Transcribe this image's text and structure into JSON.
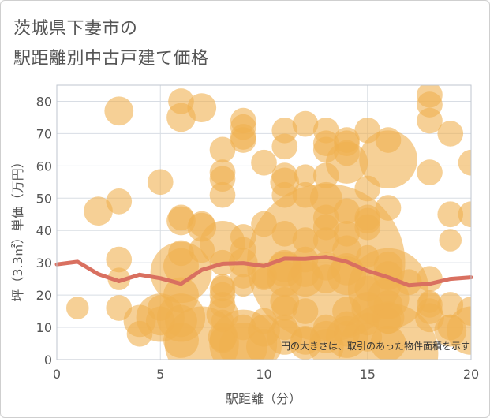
{
  "title_line1": "茨城県下妻市の",
  "title_line2": "駅距離別中古戸建て価格",
  "chart_data": {
    "type": "scatter",
    "title": "茨城県下妻市の駅距離別中古戸建て価格",
    "xlabel": "駅距離（分）",
    "ylabel": "坪（3.3㎡）単価（万円）",
    "xlim": [
      0,
      20
    ],
    "ylim": [
      0,
      85
    ],
    "xticks": [
      0,
      5,
      10,
      15,
      20
    ],
    "yticks": [
      0,
      10,
      20,
      30,
      40,
      50,
      60,
      70,
      80
    ],
    "grid": true,
    "annotation": "円の大きさは、取引のあった物件面積を示す",
    "colors": {
      "bubble": "#f0b050",
      "trend": "#d97060",
      "grid": "#d8dde4"
    },
    "trend_line": [
      {
        "x": 0,
        "y": 29.5
      },
      {
        "x": 1,
        "y": 30.3
      },
      {
        "x": 2,
        "y": 26.5
      },
      {
        "x": 3,
        "y": 24.3
      },
      {
        "x": 4,
        "y": 26.3
      },
      {
        "x": 5,
        "y": 25.2
      },
      {
        "x": 6,
        "y": 23.5
      },
      {
        "x": 7,
        "y": 27.8
      },
      {
        "x": 8,
        "y": 29.7
      },
      {
        "x": 9,
        "y": 29.9
      },
      {
        "x": 10,
        "y": 29.0
      },
      {
        "x": 11,
        "y": 31.3
      },
      {
        "x": 12,
        "y": 31.2
      },
      {
        "x": 13,
        "y": 31.8
      },
      {
        "x": 14,
        "y": 30.3
      },
      {
        "x": 15,
        "y": 27.5
      },
      {
        "x": 16,
        "y": 25.5
      },
      {
        "x": 17,
        "y": 23.0
      },
      {
        "x": 18,
        "y": 23.5
      },
      {
        "x": 19,
        "y": 25.0
      },
      {
        "x": 20,
        "y": 25.5
      }
    ],
    "bubbles": [
      {
        "x": 1,
        "y": 16,
        "s": 6
      },
      {
        "x": 2,
        "y": 46,
        "s": 8
      },
      {
        "x": 3,
        "y": 77,
        "s": 8
      },
      {
        "x": 3,
        "y": 49,
        "s": 7
      },
      {
        "x": 3,
        "y": 31,
        "s": 7
      },
      {
        "x": 3,
        "y": 25,
        "s": 6
      },
      {
        "x": 3,
        "y": 16,
        "s": 7
      },
      {
        "x": 4,
        "y": 12,
        "s": 9
      },
      {
        "x": 4,
        "y": 8,
        "s": 7
      },
      {
        "x": 5,
        "y": 55,
        "s": 7
      },
      {
        "x": 5,
        "y": 16,
        "s": 7
      },
      {
        "x": 5,
        "y": 13,
        "s": 14
      },
      {
        "x": 5,
        "y": 12,
        "s": 8
      },
      {
        "x": 6,
        "y": 80,
        "s": 7
      },
      {
        "x": 6,
        "y": 75,
        "s": 8
      },
      {
        "x": 6,
        "y": 44,
        "s": 7
      },
      {
        "x": 6,
        "y": 43,
        "s": 8
      },
      {
        "x": 6,
        "y": 33,
        "s": 7
      },
      {
        "x": 6,
        "y": 29,
        "s": 10
      },
      {
        "x": 6,
        "y": 27,
        "s": 18
      },
      {
        "x": 6,
        "y": 20,
        "s": 10
      },
      {
        "x": 6,
        "y": 13,
        "s": 14
      },
      {
        "x": 6,
        "y": 12,
        "s": 9
      },
      {
        "x": 6,
        "y": 6,
        "s": 10
      },
      {
        "x": 7,
        "y": 78,
        "s": 8
      },
      {
        "x": 7,
        "y": 42,
        "s": 7
      },
      {
        "x": 7,
        "y": 41,
        "s": 8
      },
      {
        "x": 7,
        "y": 34,
        "s": 7
      },
      {
        "x": 7,
        "y": 5,
        "s": 22
      },
      {
        "x": 8,
        "y": 65,
        "s": 7
      },
      {
        "x": 8,
        "y": 58,
        "s": 7
      },
      {
        "x": 8,
        "y": 56,
        "s": 7
      },
      {
        "x": 8,
        "y": 51,
        "s": 7
      },
      {
        "x": 8,
        "y": 36,
        "s": 13
      },
      {
        "x": 8,
        "y": 30,
        "s": 7
      },
      {
        "x": 8,
        "y": 23,
        "s": 6
      },
      {
        "x": 8,
        "y": 22,
        "s": 7
      },
      {
        "x": 8,
        "y": 20,
        "s": 7
      },
      {
        "x": 8,
        "y": 17,
        "s": 7
      },
      {
        "x": 8,
        "y": 14,
        "s": 9
      },
      {
        "x": 8,
        "y": 12,
        "s": 6
      },
      {
        "x": 8,
        "y": 7,
        "s": 8
      },
      {
        "x": 8,
        "y": 6,
        "s": 7
      },
      {
        "x": 9,
        "y": 74,
        "s": 7
      },
      {
        "x": 9,
        "y": 72,
        "s": 7
      },
      {
        "x": 9,
        "y": 69,
        "s": 7
      },
      {
        "x": 9,
        "y": 68,
        "s": 7
      },
      {
        "x": 9,
        "y": 38,
        "s": 7
      },
      {
        "x": 9,
        "y": 34,
        "s": 7
      },
      {
        "x": 9,
        "y": 30,
        "s": 8
      },
      {
        "x": 9,
        "y": 26,
        "s": 7
      },
      {
        "x": 9,
        "y": 23,
        "s": 6
      },
      {
        "x": 9,
        "y": 10,
        "s": 7
      },
      {
        "x": 9,
        "y": 5,
        "s": 20
      },
      {
        "x": 9,
        "y": 4,
        "s": 14
      },
      {
        "x": 10,
        "y": 61,
        "s": 7
      },
      {
        "x": 10,
        "y": 42,
        "s": 7
      },
      {
        "x": 10,
        "y": 26,
        "s": 7
      },
      {
        "x": 10,
        "y": 25,
        "s": 6
      },
      {
        "x": 10,
        "y": 12,
        "s": 7
      },
      {
        "x": 10,
        "y": 9,
        "s": 9
      },
      {
        "x": 10,
        "y": 4,
        "s": 10
      },
      {
        "x": 11,
        "y": 71,
        "s": 7
      },
      {
        "x": 11,
        "y": 66,
        "s": 7
      },
      {
        "x": 11,
        "y": 57,
        "s": 7
      },
      {
        "x": 11,
        "y": 55,
        "s": 8
      },
      {
        "x": 11,
        "y": 51,
        "s": 7
      },
      {
        "x": 11,
        "y": 39,
        "s": 7
      },
      {
        "x": 11,
        "y": 29,
        "s": 9
      },
      {
        "x": 11,
        "y": 28,
        "s": 10
      },
      {
        "x": 11,
        "y": 25,
        "s": 10
      },
      {
        "x": 11,
        "y": 18,
        "s": 8
      },
      {
        "x": 11,
        "y": 16,
        "s": 7
      },
      {
        "x": 11,
        "y": 10,
        "s": 7
      },
      {
        "x": 11,
        "y": 7,
        "s": 10
      },
      {
        "x": 12,
        "y": 73,
        "s": 7
      },
      {
        "x": 12,
        "y": 57,
        "s": 6
      },
      {
        "x": 12,
        "y": 51,
        "s": 7
      },
      {
        "x": 12,
        "y": 37,
        "s": 7
      },
      {
        "x": 12,
        "y": 31,
        "s": 7
      },
      {
        "x": 12,
        "y": 27,
        "s": 8
      },
      {
        "x": 12,
        "y": 25,
        "s": 10
      },
      {
        "x": 12,
        "y": 15,
        "s": 7
      },
      {
        "x": 12,
        "y": 6,
        "s": 8
      },
      {
        "x": 12,
        "y": 5,
        "s": 9
      },
      {
        "x": 13,
        "y": 71,
        "s": 7
      },
      {
        "x": 13,
        "y": 67,
        "s": 7
      },
      {
        "x": 13,
        "y": 65,
        "s": 7
      },
      {
        "x": 13,
        "y": 57,
        "s": 7
      },
      {
        "x": 13,
        "y": 50,
        "s": 9
      },
      {
        "x": 13,
        "y": 44,
        "s": 7
      },
      {
        "x": 13,
        "y": 41,
        "s": 7
      },
      {
        "x": 13,
        "y": 37,
        "s": 7
      },
      {
        "x": 13,
        "y": 30,
        "s": 48
      },
      {
        "x": 13,
        "y": 29,
        "s": 8
      },
      {
        "x": 13,
        "y": 25,
        "s": 8
      },
      {
        "x": 13,
        "y": 10,
        "s": 7
      },
      {
        "x": 13,
        "y": 7,
        "s": 9
      },
      {
        "x": 13,
        "y": 4,
        "s": 10
      },
      {
        "x": 14,
        "y": 68,
        "s": 7
      },
      {
        "x": 14,
        "y": 67,
        "s": 7
      },
      {
        "x": 14,
        "y": 64,
        "s": 7
      },
      {
        "x": 14,
        "y": 61,
        "s": 12
      },
      {
        "x": 14,
        "y": 46,
        "s": 7
      },
      {
        "x": 14,
        "y": 39,
        "s": 7
      },
      {
        "x": 14,
        "y": 34,
        "s": 8
      },
      {
        "x": 14,
        "y": 28,
        "s": 9
      },
      {
        "x": 14,
        "y": 26,
        "s": 11
      },
      {
        "x": 14,
        "y": 15,
        "s": 8
      },
      {
        "x": 14,
        "y": 11,
        "s": 7
      },
      {
        "x": 14,
        "y": 8,
        "s": 7
      },
      {
        "x": 14,
        "y": 7,
        "s": 12
      },
      {
        "x": 15,
        "y": 71,
        "s": 7
      },
      {
        "x": 15,
        "y": 53,
        "s": 7
      },
      {
        "x": 15,
        "y": 44,
        "s": 7
      },
      {
        "x": 15,
        "y": 43,
        "s": 7
      },
      {
        "x": 15,
        "y": 41,
        "s": 7
      },
      {
        "x": 15,
        "y": 32,
        "s": 6
      },
      {
        "x": 15,
        "y": 22,
        "s": 7
      },
      {
        "x": 15,
        "y": 16,
        "s": 9
      },
      {
        "x": 15,
        "y": 11,
        "s": 6
      },
      {
        "x": 15,
        "y": 7,
        "s": 8
      },
      {
        "x": 16,
        "y": 68,
        "s": 7
      },
      {
        "x": 16,
        "y": 62,
        "s": 17
      },
      {
        "x": 16,
        "y": 47,
        "s": 7
      },
      {
        "x": 16,
        "y": 29,
        "s": 8
      },
      {
        "x": 16,
        "y": 26,
        "s": 8
      },
      {
        "x": 16,
        "y": 22,
        "s": 24
      },
      {
        "x": 16,
        "y": 19,
        "s": 12
      },
      {
        "x": 16,
        "y": 17,
        "s": 8
      },
      {
        "x": 16,
        "y": 13,
        "s": 9
      },
      {
        "x": 16,
        "y": 12,
        "s": 7
      },
      {
        "x": 16,
        "y": 5,
        "s": 10
      },
      {
        "x": 16,
        "y": 2,
        "s": 30
      },
      {
        "x": 17,
        "y": 24,
        "s": 7
      },
      {
        "x": 18,
        "y": 82,
        "s": 7
      },
      {
        "x": 18,
        "y": 79,
        "s": 7
      },
      {
        "x": 18,
        "y": 74,
        "s": 7
      },
      {
        "x": 18,
        "y": 58,
        "s": 7
      },
      {
        "x": 18,
        "y": 25,
        "s": 7
      },
      {
        "x": 18,
        "y": 18,
        "s": 6
      },
      {
        "x": 18,
        "y": 17,
        "s": 7
      },
      {
        "x": 18,
        "y": 15,
        "s": 7
      },
      {
        "x": 18,
        "y": 13,
        "s": 8
      },
      {
        "x": 19,
        "y": 70,
        "s": 7
      },
      {
        "x": 19,
        "y": 45,
        "s": 7
      },
      {
        "x": 19,
        "y": 37,
        "s": 6
      },
      {
        "x": 19,
        "y": 17,
        "s": 7
      },
      {
        "x": 19,
        "y": 10,
        "s": 7
      },
      {
        "x": 19,
        "y": 9,
        "s": 9
      },
      {
        "x": 20,
        "y": 61,
        "s": 7
      },
      {
        "x": 20,
        "y": 45,
        "s": 7
      },
      {
        "x": 20,
        "y": 15,
        "s": 8
      },
      {
        "x": 20,
        "y": 9,
        "s": 14
      }
    ]
  }
}
